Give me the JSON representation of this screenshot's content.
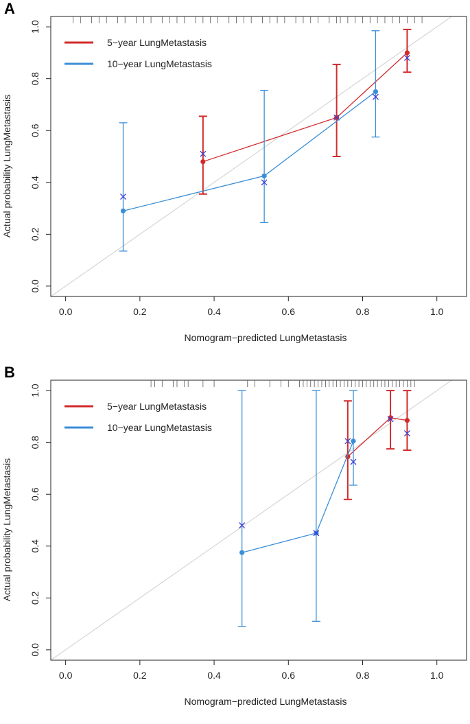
{
  "chart_data": [
    {
      "panel_label": "A",
      "type": "line",
      "title": "",
      "xlabel": "Nomogram−predicted LungMetastasis",
      "ylabel": "Actual probability LungMetastasis",
      "xlim": [
        -0.04,
        1.08
      ],
      "ylim": [
        -0.04,
        1.04
      ],
      "xticks": [
        "0.0",
        "0.2",
        "0.4",
        "0.6",
        "0.8",
        "1.0"
      ],
      "yticks": [
        "0.0",
        "0.2",
        "0.4",
        "0.6",
        "0.8",
        "1.0"
      ],
      "legend": [
        "5−year LungMetastasis",
        "10−year LungMetastasis"
      ],
      "legend_position": "top-left",
      "reference_line": "diagonal",
      "rug": [
        0.02,
        0.04,
        0.07,
        0.09,
        0.11,
        0.14,
        0.16,
        0.19,
        0.21,
        0.23,
        0.26,
        0.28,
        0.3,
        0.32,
        0.35,
        0.37,
        0.39,
        0.41,
        0.44,
        0.46,
        0.48,
        0.5,
        0.53,
        0.55,
        0.57,
        0.59,
        0.62,
        0.64,
        0.66,
        0.68,
        0.71,
        0.73,
        0.74,
        0.76,
        0.78,
        0.8,
        0.82,
        0.84,
        0.86,
        0.88,
        0.9,
        0.92,
        0.94,
        0.96
      ],
      "series": [
        {
          "name": "5−year LungMetastasis",
          "color": "#d12b2b",
          "x": [
            0.37,
            0.73,
            0.92
          ],
          "observed": [
            0.48,
            0.65,
            0.9
          ],
          "corrected": [
            0.51,
            0.65,
            0.88
          ],
          "ci_low": [
            0.355,
            0.5,
            0.825
          ],
          "ci_high": [
            0.655,
            0.855,
            0.99
          ]
        },
        {
          "name": "10−year LungMetastasis",
          "color": "#3a8ed6",
          "x": [
            0.155,
            0.535,
            0.835
          ],
          "observed": [
            0.29,
            0.425,
            0.75
          ],
          "corrected": [
            0.345,
            0.4,
            0.73
          ],
          "ci_low": [
            0.135,
            0.245,
            0.575
          ],
          "ci_high": [
            0.63,
            0.755,
            0.985
          ]
        }
      ]
    },
    {
      "panel_label": "B",
      "type": "line",
      "title": "",
      "xlabel": "Nomogram−predicted LungMetastasis",
      "ylabel": "Actual probability LungMetastasis",
      "xlim": [
        -0.04,
        1.08
      ],
      "ylim": [
        -0.04,
        1.04
      ],
      "xticks": [
        "0.0",
        "0.2",
        "0.4",
        "0.6",
        "0.8",
        "1.0"
      ],
      "yticks": [
        "0.0",
        "0.2",
        "0.4",
        "0.6",
        "0.8",
        "1.0"
      ],
      "legend": [
        "5−year LungMetastasis",
        "10−year LungMetastasis"
      ],
      "legend_position": "top-left",
      "reference_line": "diagonal",
      "rug": [
        0.23,
        0.24,
        0.26,
        0.29,
        0.3,
        0.32,
        0.33,
        0.37,
        0.4,
        0.49,
        0.51,
        0.55,
        0.58,
        0.6,
        0.63,
        0.64,
        0.65,
        0.66,
        0.67,
        0.68,
        0.69,
        0.7,
        0.71,
        0.72,
        0.73,
        0.74,
        0.75,
        0.76,
        0.77,
        0.78,
        0.79,
        0.8,
        0.81,
        0.82,
        0.83,
        0.84,
        0.85,
        0.86,
        0.87,
        0.88,
        0.89,
        0.9,
        0.91,
        0.92,
        0.93,
        0.94
      ],
      "series": [
        {
          "name": "5−year LungMetastasis",
          "color": "#d12b2b",
          "x": [
            0.76,
            0.875,
            0.92
          ],
          "observed": [
            0.745,
            0.895,
            0.885
          ],
          "corrected": [
            0.805,
            0.89,
            0.835
          ],
          "ci_low": [
            0.58,
            0.775,
            0.77
          ],
          "ci_high": [
            0.96,
            1.0,
            1.0
          ]
        },
        {
          "name": "10−year LungMetastasis",
          "color": "#3a8ed6",
          "x": [
            0.475,
            0.675,
            0.775
          ],
          "observed": [
            0.375,
            0.45,
            0.805
          ],
          "corrected": [
            0.48,
            0.45,
            0.725
          ],
          "ci_low": [
            0.09,
            0.11,
            0.635
          ],
          "ci_high": [
            1.0,
            1.0,
            1.0
          ]
        }
      ]
    }
  ]
}
